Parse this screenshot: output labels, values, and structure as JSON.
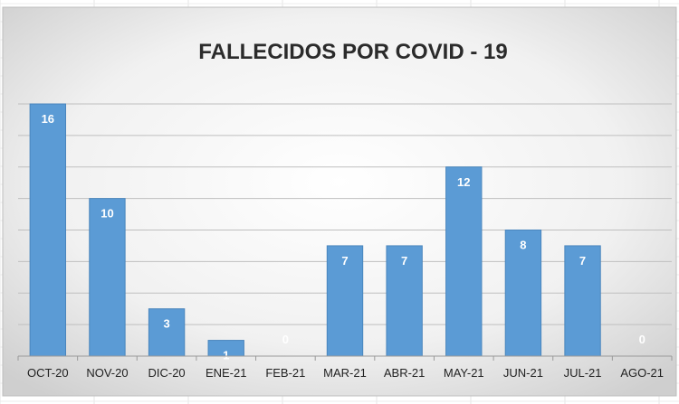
{
  "chart_data": {
    "type": "bar",
    "title": "FALLECIDOS POR COVID - 19",
    "categories": [
      "OCT-20",
      "NOV-20",
      "DIC-20",
      "ENE-21",
      "FEB-21",
      "MAR-21",
      "ABR-21",
      "MAY-21",
      "JUN-21",
      "JUL-21",
      "AGO-21"
    ],
    "values": [
      16,
      10,
      3,
      1,
      0,
      7,
      7,
      12,
      8,
      7,
      0
    ],
    "ylim": [
      0,
      16
    ],
    "grid": true,
    "data_labels": true,
    "legend": "none",
    "colors": {
      "bar": "#5b9bd5",
      "bar_edge": "#4a86bd",
      "data_label": "#ffffff",
      "plot_bg_center": "#ffffff",
      "plot_bg_edge": "#d0d0d0"
    }
  }
}
